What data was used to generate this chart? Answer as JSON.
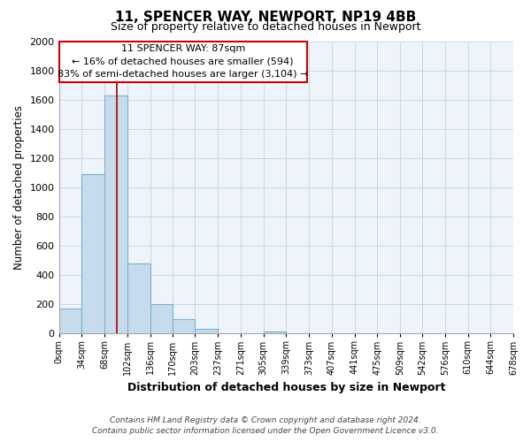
{
  "title": "11, SPENCER WAY, NEWPORT, NP19 4BB",
  "subtitle": "Size of property relative to detached houses in Newport",
  "bar_values": [
    170,
    1090,
    1630,
    480,
    200,
    100,
    35,
    0,
    0,
    15,
    0,
    0,
    0,
    0,
    0,
    0,
    0,
    0,
    0,
    0
  ],
  "bin_edges": [
    0,
    34,
    68,
    102,
    136,
    170,
    203,
    237,
    271,
    305,
    339,
    373,
    407,
    441,
    475,
    509,
    542,
    576,
    610,
    644,
    678
  ],
  "bin_labels": [
    "0sqm",
    "34sqm",
    "68sqm",
    "102sqm",
    "136sqm",
    "170sqm",
    "203sqm",
    "237sqm",
    "271sqm",
    "305sqm",
    "339sqm",
    "373sqm",
    "407sqm",
    "441sqm",
    "475sqm",
    "509sqm",
    "542sqm",
    "576sqm",
    "610sqm",
    "644sqm",
    "678sqm"
  ],
  "bar_color": "#c6dcec",
  "bar_edge_color": "#7ab0ce",
  "ylabel": "Number of detached properties",
  "xlabel": "Distribution of detached houses by size in Newport",
  "ylim": [
    0,
    2000
  ],
  "yticks": [
    0,
    200,
    400,
    600,
    800,
    1000,
    1200,
    1400,
    1600,
    1800,
    2000
  ],
  "annotation_line1": "11 SPENCER WAY: 87sqm",
  "annotation_line2": "← 16% of detached houses are smaller (594)",
  "annotation_line3": "83% of semi-detached houses are larger (3,104) →",
  "vertical_line_x": 87,
  "vertical_line_color": "#aa0000",
  "footer_line1": "Contains HM Land Registry data © Crown copyright and database right 2024.",
  "footer_line2": "Contains public sector information licensed under the Open Government Licence v3.0.",
  "background_color": "#ffffff",
  "grid_color": "#c8d8e8",
  "grid_bg_color": "#eef4fa"
}
